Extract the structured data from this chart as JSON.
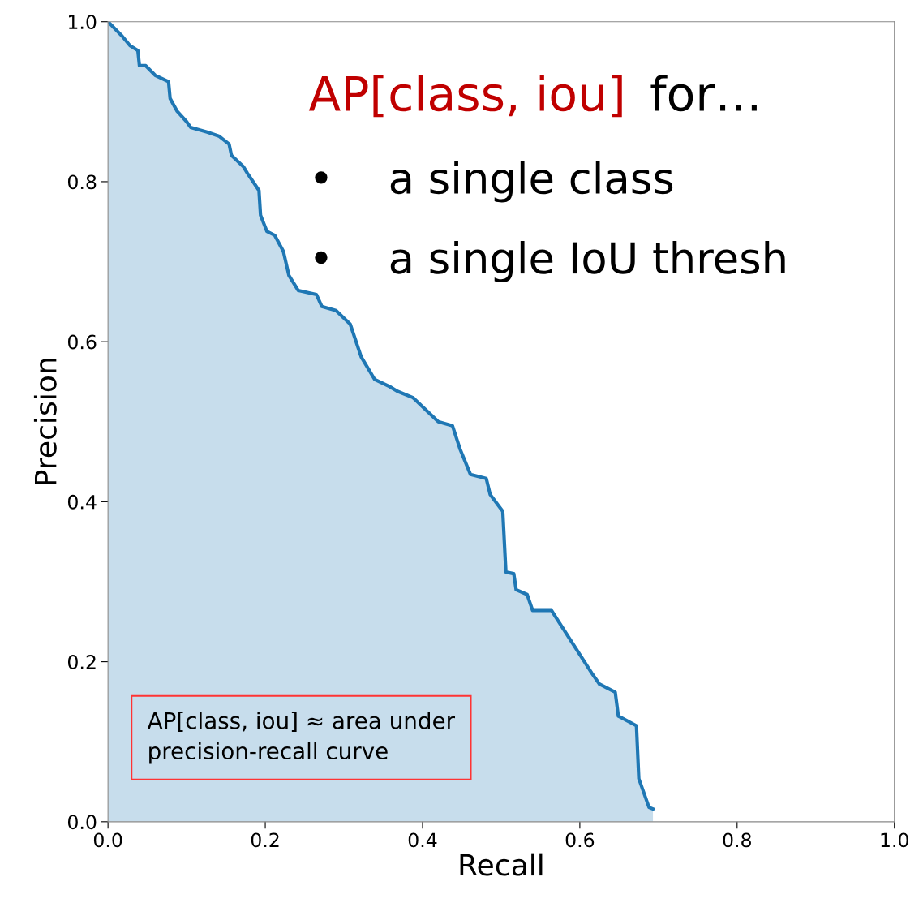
{
  "chart_data": {
    "type": "area",
    "xlabel": "Recall",
    "ylabel": "Precision",
    "x": [
      0,
      0.018,
      0.028,
      0.038,
      0.04,
      0.048,
      0.06,
      0.077,
      0.079,
      0.088,
      0.1,
      0.105,
      0.126,
      0.141,
      0.154,
      0.157,
      0.172,
      0.177,
      0.192,
      0.194,
      0.202,
      0.212,
      0.223,
      0.23,
      0.242,
      0.265,
      0.272,
      0.29,
      0.308,
      0.322,
      0.339,
      0.358,
      0.368,
      0.388,
      0.404,
      0.42,
      0.438,
      0.448,
      0.461,
      0.481,
      0.486,
      0.502,
      0.506,
      0.516,
      0.519,
      0.533,
      0.54,
      0.564,
      0.579,
      0.615,
      0.625,
      0.645,
      0.649,
      0.672,
      0.675,
      0.688,
      0.693
    ],
    "series": [
      {
        "color": "#1f77b4",
        "values": [
          1.0,
          0.982,
          0.97,
          0.964,
          0.945,
          0.945,
          0.933,
          0.925,
          0.904,
          0.888,
          0.875,
          0.868,
          0.862,
          0.857,
          0.847,
          0.833,
          0.819,
          0.811,
          0.789,
          0.758,
          0.738,
          0.733,
          0.713,
          0.683,
          0.664,
          0.659,
          0.644,
          0.639,
          0.622,
          0.581,
          0.553,
          0.544,
          0.538,
          0.53,
          0.515,
          0.5,
          0.495,
          0.465,
          0.434,
          0.429,
          0.409,
          0.388,
          0.312,
          0.31,
          0.29,
          0.284,
          0.264,
          0.264,
          0.241,
          0.186,
          0.172,
          0.162,
          0.132,
          0.12,
          0.054,
          0.018,
          0.016
        ]
      }
    ],
    "xlim": [
      0,
      1
    ],
    "ylim": [
      0,
      1
    ],
    "xticks": [
      {
        "value": 0,
        "label": "0.0"
      },
      0.2,
      0.4,
      0.6,
      0.8,
      {
        "value": 1,
        "label": "1.0"
      }
    ],
    "yticks": [
      {
        "value": 0,
        "label": "0.0"
      },
      0.2,
      0.4,
      0.6,
      0.8,
      {
        "value": 1,
        "label": "1.0"
      }
    ],
    "grid": false,
    "annotations": [
      "AP[class, iou]",
      "for…",
      "•    a single class",
      "•    a single IoU thresh",
      "AP[class, iou] ≈ area under\nprecision-recall curve"
    ]
  }
}
